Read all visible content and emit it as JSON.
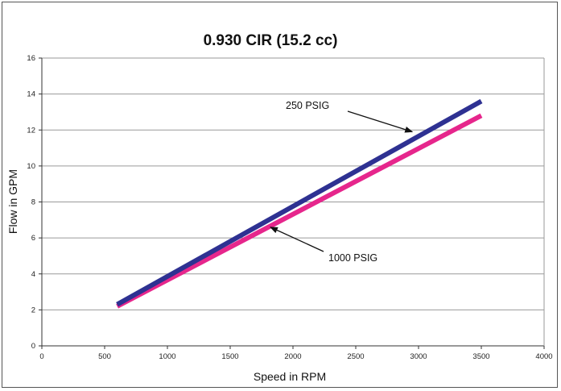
{
  "chart_data": {
    "type": "line",
    "title": "0.930 CIR (15.2 cc)",
    "xlabel": "Speed in RPM",
    "ylabel": "Flow in GPM",
    "xlim": [
      0,
      4000
    ],
    "ylim": [
      0,
      16
    ],
    "x_ticks": [
      "0",
      "500",
      "1000",
      "1500",
      "2000",
      "2500",
      "3000",
      "3500",
      "4000"
    ],
    "y_ticks": [
      "0",
      "2",
      "4",
      "6",
      "8",
      "10",
      "12",
      "14",
      "16"
    ],
    "grid": "horizontal",
    "series": [
      {
        "name": "250 PSIG",
        "color": "#2e3192",
        "x": [
          600,
          3500
        ],
        "y": [
          2.3,
          13.6
        ]
      },
      {
        "name": "1000 PSIG",
        "color": "#e6268c",
        "x": [
          600,
          3500
        ],
        "y": [
          2.2,
          12.8
        ]
      }
    ],
    "annotations": [
      {
        "text": "250 PSIG",
        "series": 0,
        "arrow_to_x": 2950,
        "arrow_to_y": 11.9
      },
      {
        "text": "1000 PSIG",
        "series": 1,
        "arrow_to_x": 1820,
        "arrow_to_y": 6.6
      }
    ]
  }
}
